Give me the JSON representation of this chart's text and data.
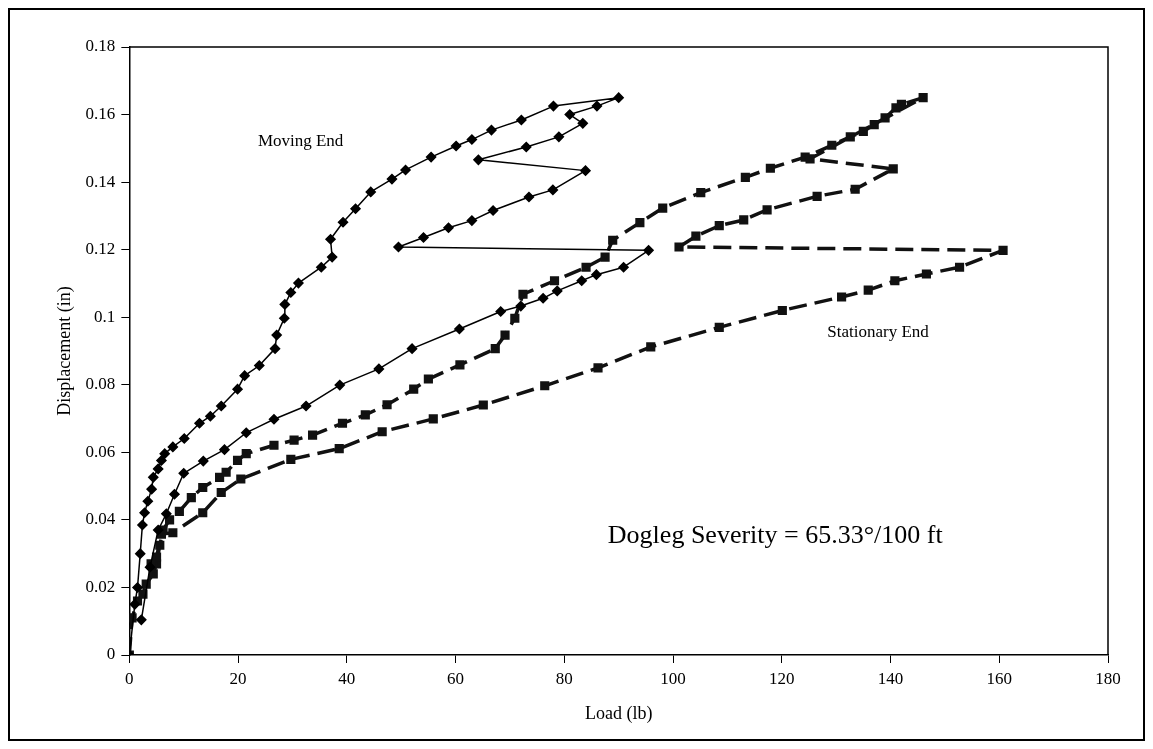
{
  "chart_data": {
    "type": "line",
    "xlabel": "Load (lb)",
    "ylabel": "Displacement (in)",
    "xlim": [
      0,
      180
    ],
    "xticks": [
      0,
      20,
      40,
      60,
      80,
      100,
      120,
      140,
      160,
      180
    ],
    "ylim": [
      0,
      0.18
    ],
    "yticks": [
      0,
      0.02,
      0.04,
      0.06,
      0.08,
      0.1,
      0.12,
      0.14,
      0.16,
      0.18
    ],
    "grid": false,
    "legend": false,
    "annotations": [
      "Dogleg Severity = 65.33°/100 ft"
    ],
    "series": [
      {
        "name": "Moving End",
        "color": "#000000",
        "marker": "diamond",
        "line_style": "solid",
        "x": [
          0,
          1,
          1.5,
          2,
          2.4,
          2.8,
          3.4,
          4.1,
          4.4,
          5.3,
          5.9,
          6.5,
          8,
          10.1,
          12.9,
          14.9,
          16.9,
          19.9,
          21.2,
          23.9,
          26.8,
          27.1,
          28.5,
          28.6,
          29.7,
          31.1,
          35.3,
          37.3,
          37,
          39.3,
          41.6,
          44.4,
          48.3,
          50.8,
          55.5,
          60.1,
          63,
          66.6,
          72.1,
          78,
          90,
          86,
          81,
          83.4,
          79,
          73,
          64.2,
          83.9,
          77.9,
          73.5,
          66.9,
          63,
          58.7,
          54.1,
          49.5,
          95.5,
          90.9,
          85.9,
          83.2,
          78.7,
          76.1,
          72,
          68.3,
          60.7,
          52,
          45.9,
          38.7,
          32.5,
          26.6,
          21.5,
          17.5,
          13.6,
          10,
          8.3,
          6.8,
          5.3,
          3.8,
          2.2
        ],
        "values": [
          0,
          0.015,
          0.02,
          0.03,
          0.0385,
          0.0421,
          0.0455,
          0.0491,
          0.0526,
          0.0551,
          0.0576,
          0.0596,
          0.0616,
          0.0641,
          0.0686,
          0.0707,
          0.0737,
          0.0787,
          0.0827,
          0.0857,
          0.0907,
          0.0947,
          0.0997,
          0.1038,
          0.1073,
          0.1101,
          0.1148,
          0.1178,
          0.1231,
          0.1281,
          0.1321,
          0.1371,
          0.1409,
          0.1436,
          0.1474,
          0.1507,
          0.1526,
          0.1554,
          0.1584,
          0.1625,
          0.165,
          0.1625,
          0.16,
          0.1574,
          0.1534,
          0.1504,
          0.1466,
          0.1434,
          0.1377,
          0.1356,
          0.1316,
          0.1286,
          0.1265,
          0.1236,
          0.1208,
          0.1198,
          0.1148,
          0.1126,
          0.1108,
          0.1078,
          0.1056,
          0.1033,
          0.1017,
          0.0965,
          0.0907,
          0.0847,
          0.0799,
          0.0737,
          0.0698,
          0.0658,
          0.0608,
          0.0574,
          0.0538,
          0.0476,
          0.0418,
          0.037,
          0.026,
          0.0104
        ]
      },
      {
        "name": "Stationary End",
        "color": "#111111",
        "marker": "square",
        "line_style": "dashed",
        "x": [
          0,
          0.5,
          1.5,
          2.5,
          3.1,
          4.4,
          5,
          5.6,
          6.2,
          7.4,
          9.2,
          11.4,
          13.5,
          16.6,
          17.8,
          19.9,
          21.5,
          26.6,
          30.3,
          33.7,
          39.2,
          43.4,
          47.4,
          52.3,
          55,
          60.8,
          67.3,
          69.1,
          70.9,
          72.4,
          78.2,
          84,
          87.5,
          88.9,
          93.9,
          98.1,
          105.1,
          113.3,
          117.9,
          124.3,
          129.2,
          132.6,
          135,
          137,
          139,
          141,
          142,
          146,
          125.2,
          140.5,
          133.5,
          126.5,
          117.3,
          113,
          108.5,
          104.2,
          101.1,
          160.7,
          152.7,
          146.6,
          140.8,
          135.9,
          131,
          120.1,
          108.5,
          95.9,
          86.2,
          76.4,
          65.1,
          55.9,
          46.5,
          38.6,
          29.7,
          20.5,
          16.9,
          13.5,
          8,
          5.9,
          5,
          4
        ],
        "values": [
          0,
          0.011,
          0.016,
          0.018,
          0.021,
          0.024,
          0.027,
          0.0325,
          0.037,
          0.04,
          0.0425,
          0.0466,
          0.0496,
          0.0526,
          0.0541,
          0.0576,
          0.0596,
          0.0621,
          0.0636,
          0.0651,
          0.0686,
          0.0711,
          0.0741,
          0.0787,
          0.0817,
          0.0859,
          0.0907,
          0.0947,
          0.0997,
          0.1068,
          0.1108,
          0.1148,
          0.1178,
          0.1228,
          0.128,
          0.1323,
          0.1369,
          0.1414,
          0.1441,
          0.1474,
          0.1509,
          0.1534,
          0.155,
          0.157,
          0.159,
          0.162,
          0.163,
          0.165,
          0.1469,
          0.1439,
          0.1379,
          0.1358,
          0.1318,
          0.1288,
          0.1271,
          0.124,
          0.1208,
          0.1198,
          0.1148,
          0.1128,
          0.1108,
          0.108,
          0.106,
          0.102,
          0.097,
          0.0912,
          0.085,
          0.0797,
          0.074,
          0.0699,
          0.0661,
          0.0611,
          0.0579,
          0.0521,
          0.0481,
          0.0421,
          0.0362,
          0.0358,
          0.029,
          0.027
        ]
      }
    ]
  }
}
